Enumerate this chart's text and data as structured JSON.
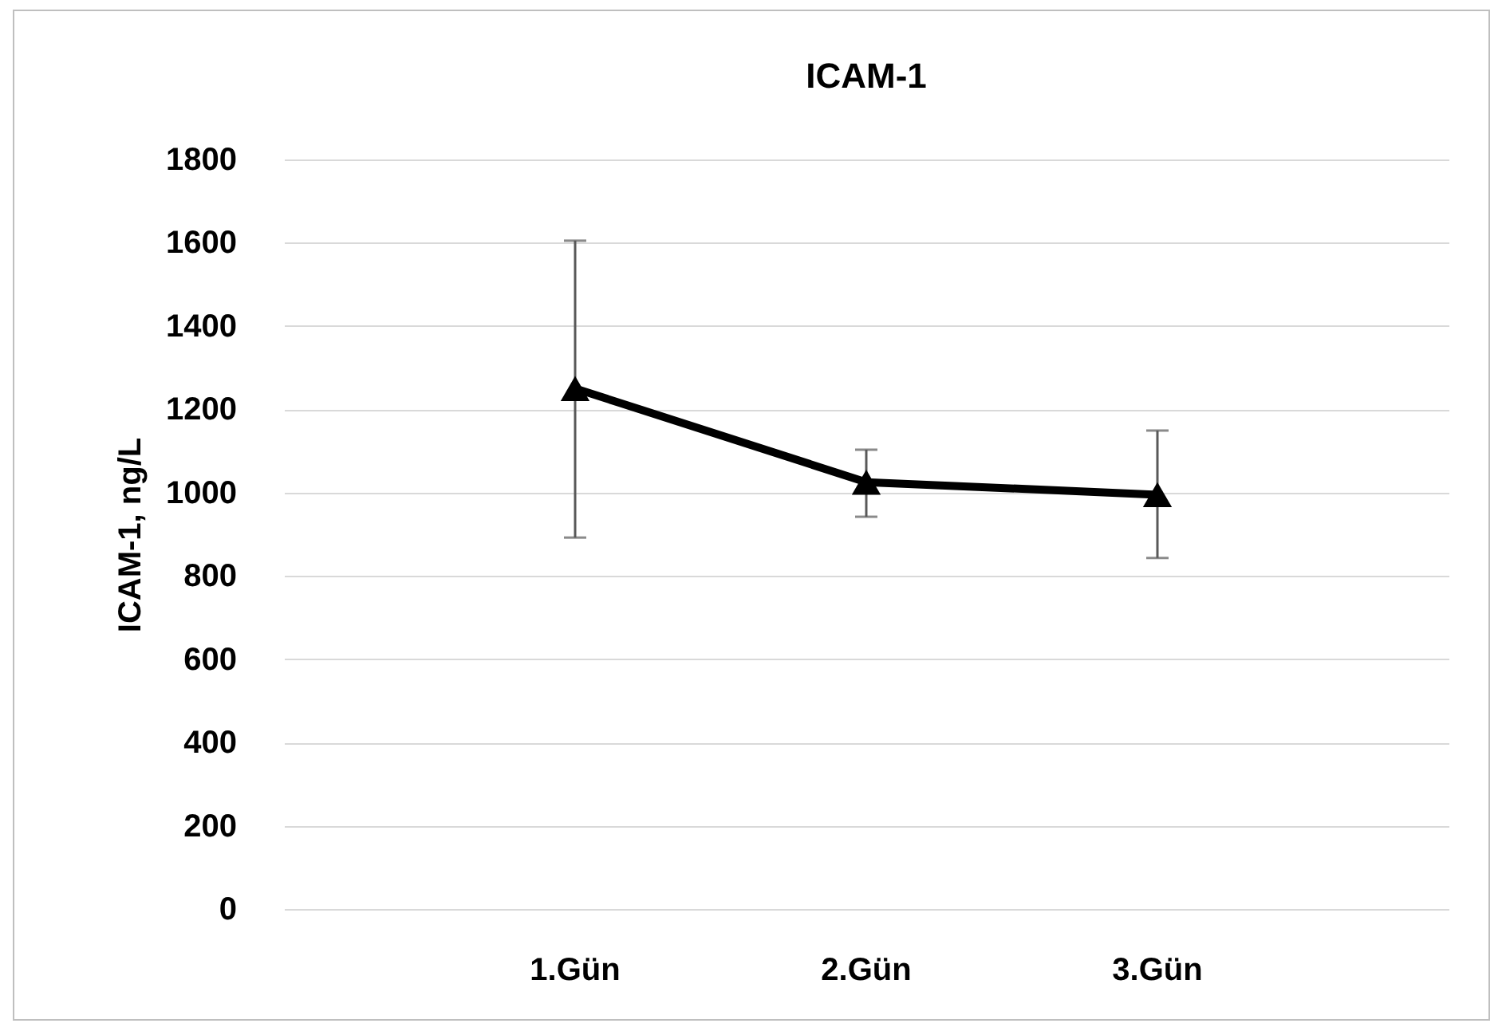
{
  "chart_data": {
    "type": "line",
    "title": "ICAM-1",
    "ylabel": "ICAM-1, ng/L",
    "categories": [
      "1.Gün",
      "2.Gün",
      "3.Gün"
    ],
    "series": [
      {
        "color": "#000000",
        "values": [
          1250,
          1025,
          995
        ],
        "errors": [
          [
            892,
            1605
          ],
          [
            942,
            1103
          ],
          [
            843,
            1149
          ]
        ]
      }
    ],
    "ylim": [
      0,
      1800
    ],
    "yticks": [
      0,
      200,
      400,
      600,
      800,
      1000,
      1200,
      1400,
      1600,
      1800
    ],
    "grid": "y",
    "marker": "triangle",
    "line_style": "solid"
  }
}
